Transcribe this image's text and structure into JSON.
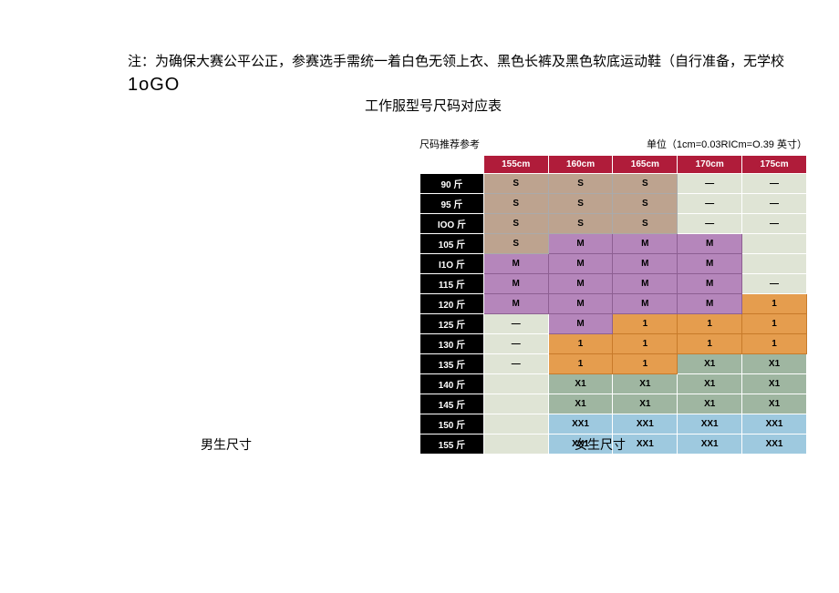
{
  "header": {
    "line1_prefix": "注：为确保大赛公平公正，参赛选手需统一着白色无领上衣、黑色长裤及黑色软底运动鞋（自行准备，无学校",
    "logo": "1oGO",
    "line2": "工作服型号尺码对应表"
  },
  "caption": {
    "left": "尺码推荐参考",
    "right": "单位（1cm=0.03RICm=O.39 英寸）"
  },
  "table": {
    "col_headers": [
      "155cm",
      "160cm",
      "165cm",
      "170cm",
      "175cm"
    ],
    "row_headers": [
      "90 斤",
      "95 斤",
      "IOO 斤",
      "105 斤",
      "I1O 斤",
      "115 斤",
      "120 斤",
      "125 斤",
      "130 斤",
      "135 斤",
      "140 斤",
      "145 斤",
      "150 斤",
      "155 斤"
    ],
    "cells": [
      [
        "S",
        "S",
        "S",
        "—",
        "—"
      ],
      [
        "S",
        "S",
        "S",
        "—",
        "—"
      ],
      [
        "S",
        "S",
        "S",
        "—",
        "—"
      ],
      [
        "S",
        "M",
        "M",
        "M",
        ""
      ],
      [
        "M",
        "M",
        "M",
        "M",
        ""
      ],
      [
        "M",
        "M",
        "M",
        "M",
        "—"
      ],
      [
        "M",
        "M",
        "M",
        "M",
        "1"
      ],
      [
        "—",
        "M",
        "1",
        "1",
        "1"
      ],
      [
        "—",
        "1",
        "1",
        "1",
        "1"
      ],
      [
        "—",
        "1",
        "1",
        "X1",
        "X1"
      ],
      [
        "",
        "X1",
        "X1",
        "X1",
        "X1"
      ],
      [
        "",
        "X1",
        "X1",
        "X1",
        "X1"
      ],
      [
        "",
        "XX1",
        "XX1",
        "XX1",
        "XX1"
      ],
      [
        "",
        "XX1",
        "XX1",
        "XX1",
        "XX1"
      ]
    ],
    "cell_bg": [
      [
        "#bda38f",
        "#bda38f",
        "#bda38f",
        "#dfe4d5",
        "#dfe4d5"
      ],
      [
        "#bda38f",
        "#bda38f",
        "#bda38f",
        "#dfe4d5",
        "#dfe4d5"
      ],
      [
        "#bda38f",
        "#bda38f",
        "#bda38f",
        "#dfe4d5",
        "#dfe4d5"
      ],
      [
        "#bda38f",
        "#b586bb",
        "#b586bb",
        "#b586bb",
        "#dfe4d5"
      ],
      [
        "#b586bb",
        "#b586bb",
        "#b586bb",
        "#b586bb",
        "#dfe4d5"
      ],
      [
        "#b586bb",
        "#b586bb",
        "#b586bb",
        "#b586bb",
        "#dfe4d5"
      ],
      [
        "#b586bb",
        "#b586bb",
        "#b586bb",
        "#b586bb",
        "#e59d4e"
      ],
      [
        "#dfe4d5",
        "#b586bb",
        "#e59d4e",
        "#e59d4e",
        "#e59d4e"
      ],
      [
        "#dfe4d5",
        "#e59d4e",
        "#e59d4e",
        "#e59d4e",
        "#e59d4e"
      ],
      [
        "#dfe4d5",
        "#e59d4e",
        "#e59d4e",
        "#9fb6a1",
        "#9fb6a1"
      ],
      [
        "#dfe4d5",
        "#9fb6a1",
        "#9fb6a1",
        "#9fb6a1",
        "#9fb6a1"
      ],
      [
        "#dfe4d5",
        "#9fb6a1",
        "#9fb6a1",
        "#9fb6a1",
        "#9fb6a1"
      ],
      [
        "#dfe4d5",
        "#9ec9df",
        "#9ec9df",
        "#9ec9df",
        "#9ec9df"
      ],
      [
        "#dfe4d5",
        "#9ec9df",
        "#9ec9df",
        "#9ec9df",
        "#9ec9df"
      ]
    ],
    "cell_border": [
      [
        "#aaa",
        "#aaa",
        "#aaa",
        "#fff",
        "#fff"
      ],
      [
        "#aaa",
        "#aaa",
        "#aaa",
        "#fff",
        "#fff"
      ],
      [
        "#aaa",
        "#aaa",
        "#aaa",
        "#fff",
        "#fff"
      ],
      [
        "#aaa",
        "#8d5f92",
        "#8d5f92",
        "#8d5f92",
        "#fff"
      ],
      [
        "#8d5f92",
        "#8d5f92",
        "#8d5f92",
        "#8d5f92",
        "#fff"
      ],
      [
        "#8d5f92",
        "#8d5f92",
        "#8d5f92",
        "#8d5f92",
        "#fff"
      ],
      [
        "#8d5f92",
        "#8d5f92",
        "#8d5f92",
        "#8d5f92",
        "#c77a2a"
      ],
      [
        "#fff",
        "#8d5f92",
        "#c77a2a",
        "#c77a2a",
        "#c77a2a"
      ],
      [
        "#fff",
        "#c77a2a",
        "#c77a2a",
        "#c77a2a",
        "#c77a2a"
      ],
      [
        "#fff",
        "#c77a2a",
        "#c77a2a",
        "#fff",
        "#fff"
      ],
      [
        "#fff",
        "#fff",
        "#fff",
        "#fff",
        "#fff"
      ],
      [
        "#fff",
        "#fff",
        "#fff",
        "#fff",
        "#fff"
      ],
      [
        "#fff",
        "#fff",
        "#fff",
        "#fff",
        "#fff"
      ],
      [
        "#fff",
        "#fff",
        "#fff",
        "#fff",
        "#fff"
      ]
    ]
  },
  "labels": {
    "male": "男生尺寸",
    "female": "女生尺寸"
  }
}
